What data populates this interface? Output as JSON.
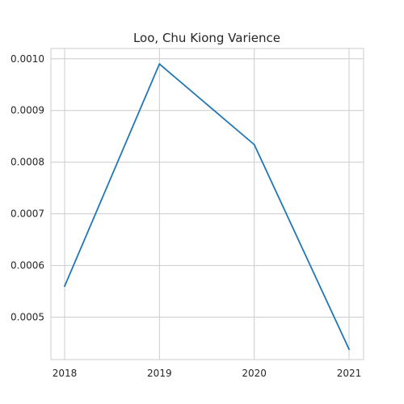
{
  "chart_data": {
    "type": "line",
    "title": "Loo, Chu Kiong Varience",
    "xlabel": "",
    "ylabel": "",
    "categories": [
      "2018",
      "2019",
      "2020",
      "2021"
    ],
    "series": [
      {
        "values": [
          0.00056,
          0.00099,
          0.000834,
          0.000438
        ],
        "color": "#1f77b4"
      }
    ],
    "ylim": [
      0.000418,
      0.00102
    ],
    "yticks": [
      0.0005,
      0.0006,
      0.0007,
      0.0008,
      0.0009,
      0.001
    ],
    "ytick_labels": [
      "0.0005",
      "0.0006",
      "0.0007",
      "0.0008",
      "0.0009",
      "0.0010"
    ],
    "grid": true,
    "legend": "none"
  }
}
